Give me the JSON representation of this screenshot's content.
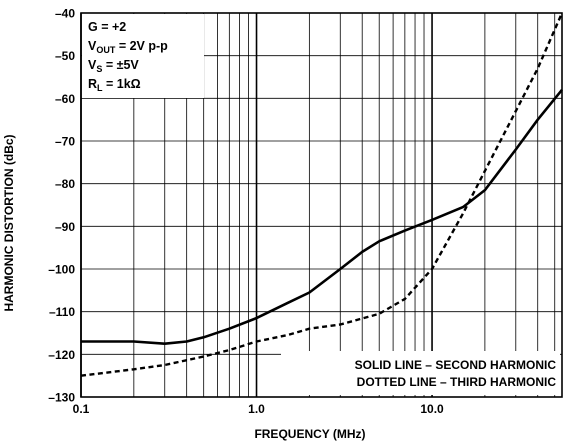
{
  "chart_data": {
    "type": "line",
    "xscale": "log",
    "xlim": [
      0.1,
      55
    ],
    "ylim": [
      -130,
      -40
    ],
    "grid": true,
    "xlabel": "FREQUENCY (MHz)",
    "ylabel": "HARMONIC DISTORTION (dBc)",
    "x_ticks": [
      {
        "value": 0.1,
        "label": "0.1"
      },
      {
        "value": 1,
        "label": "1.0"
      },
      {
        "value": 10,
        "label": "10.0"
      }
    ],
    "y_ticks": [
      -40,
      -50,
      -60,
      -70,
      -80,
      -90,
      -100,
      -110,
      -120,
      -130
    ],
    "conditions": [
      {
        "main": "G = +2",
        "sub": "",
        "rest": ""
      },
      {
        "main": "V",
        "sub": "OUT",
        "rest": " = 2V p-p"
      },
      {
        "main": "V",
        "sub": "S",
        "rest": " = ±5V"
      },
      {
        "main": "R",
        "sub": "L",
        "rest": " = 1kΩ"
      }
    ],
    "legend_lines": [
      "SOLID LINE – SECOND HARMONIC",
      "DOTTED LINE – THIRD HARMONIC"
    ],
    "legend_placement": "bottom-right",
    "series": [
      {
        "style": "solid",
        "x": [
          0.1,
          0.2,
          0.3,
          0.4,
          0.5,
          0.7,
          1,
          1.5,
          2,
          3,
          4,
          5,
          7,
          10,
          15,
          20,
          30,
          40,
          55
        ],
        "y": [
          -117,
          -117,
          -117.5,
          -117,
          -116,
          -114,
          -111.5,
          -108,
          -105.5,
          -100,
          -96,
          -93.5,
          -91,
          -88.5,
          -85.5,
          -81.5,
          -72,
          -65,
          -58
        ]
      },
      {
        "style": "dotted",
        "x": [
          0.1,
          0.2,
          0.3,
          0.5,
          0.7,
          1,
          1.5,
          2,
          3,
          5,
          7,
          10,
          15,
          20,
          30,
          40,
          55
        ],
        "y": [
          -125,
          -123.5,
          -122.5,
          -120.5,
          -119,
          -117,
          -115.5,
          -114,
          -113,
          -110.5,
          -107,
          -100,
          -87,
          -77,
          -63,
          -53,
          -40
        ]
      }
    ]
  }
}
